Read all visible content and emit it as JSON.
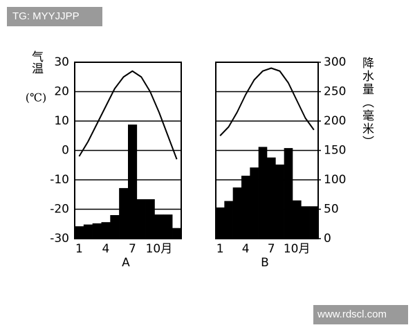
{
  "watermarks": [
    "TG: MYYJJPP",
    "www.rdscl.com"
  ],
  "chart_data": {
    "type": "climate",
    "ylabel": "气温",
    "yunit": "(℃)",
    "y2label": "降水量（毫米）",
    "ylim": [
      -30,
      30
    ],
    "yticks": [
      -30,
      -20,
      -10,
      0,
      10,
      20,
      30
    ],
    "y2lim": [
      0,
      300
    ],
    "y2ticks": [
      0,
      50,
      100,
      150,
      200,
      250,
      300
    ],
    "grid": true,
    "panels": [
      {
        "label": "A",
        "categories": [
          "1",
          null,
          null,
          "4",
          null,
          null,
          "7",
          null,
          null,
          "10月",
          null,
          null
        ],
        "temperature": [
          -2,
          3,
          9,
          15,
          21,
          25,
          27,
          25,
          20,
          13,
          5,
          -3
        ],
        "precipitation": [
          21,
          24,
          26,
          28,
          40,
          86,
          194,
          67,
          67,
          41,
          41,
          18
        ]
      },
      {
        "label": "B",
        "categories": [
          "1",
          null,
          null,
          "4",
          null,
          null,
          "7",
          null,
          null,
          "10月",
          null,
          null
        ],
        "temperature": [
          5,
          8,
          13,
          19,
          24,
          27,
          28,
          27,
          23,
          17,
          11,
          7
        ],
        "precipitation": [
          53,
          64,
          87,
          107,
          121,
          156,
          138,
          126,
          154,
          65,
          55,
          55
        ]
      }
    ]
  }
}
